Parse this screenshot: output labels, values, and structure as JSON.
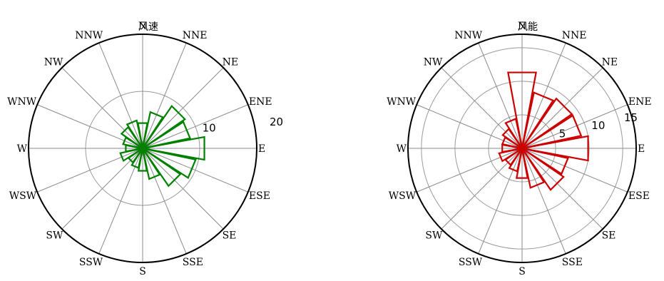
{
  "chart_data": [
    {
      "type": "rose",
      "title": "风速",
      "directions": [
        "N",
        "NNE",
        "NE",
        "ENE",
        "E",
        "ESE",
        "SE",
        "SSE",
        "S",
        "SSW",
        "SW",
        "WSW",
        "W",
        "WNW",
        "NW",
        "NNW"
      ],
      "direction_labels": [
        "N",
        "NNE",
        "NE",
        "ENE",
        "E",
        "ESE",
        "SE",
        "SSE",
        "S",
        "SSW",
        "SW",
        "WSW",
        "W",
        "WNW",
        "NW",
        "NNW"
      ],
      "values": [
        4.5,
        6.5,
        9.0,
        8.5,
        11.0,
        9.5,
        8.0,
        5.5,
        4.0,
        3.5,
        3.0,
        4.0,
        3.0,
        3.5,
        4.5,
        5.0
      ],
      "rmax": 20,
      "rticks": [
        10,
        20
      ],
      "rtick_labels": [
        "10",
        "20"
      ],
      "color": "#008000",
      "grid": true
    },
    {
      "type": "rose",
      "title": "风能",
      "directions": [
        "N",
        "NNE",
        "NE",
        "ENE",
        "E",
        "ESE",
        "SE",
        "SSE",
        "S",
        "SSW",
        "SW",
        "WSW",
        "W",
        "WNW",
        "NW",
        "NNW"
      ],
      "direction_labels": [
        "N",
        "NNE",
        "NE",
        "ENE",
        "E",
        "ESE",
        "SE",
        "SSE",
        "S",
        "SSW",
        "SW",
        "WSW",
        "W",
        "WNW",
        "NW",
        "NNW"
      ],
      "values": [
        11.5,
        8.5,
        9.0,
        9.0,
        10.0,
        7.0,
        7.5,
        6.0,
        4.5,
        3.5,
        3.0,
        3.5,
        3.0,
        3.0,
        3.5,
        4.5
      ],
      "rmax": 17,
      "rticks": [
        5,
        10,
        15
      ],
      "rtick_labels": [
        "5",
        "10",
        "15"
      ],
      "color": "#cc0000",
      "grid": true
    }
  ]
}
